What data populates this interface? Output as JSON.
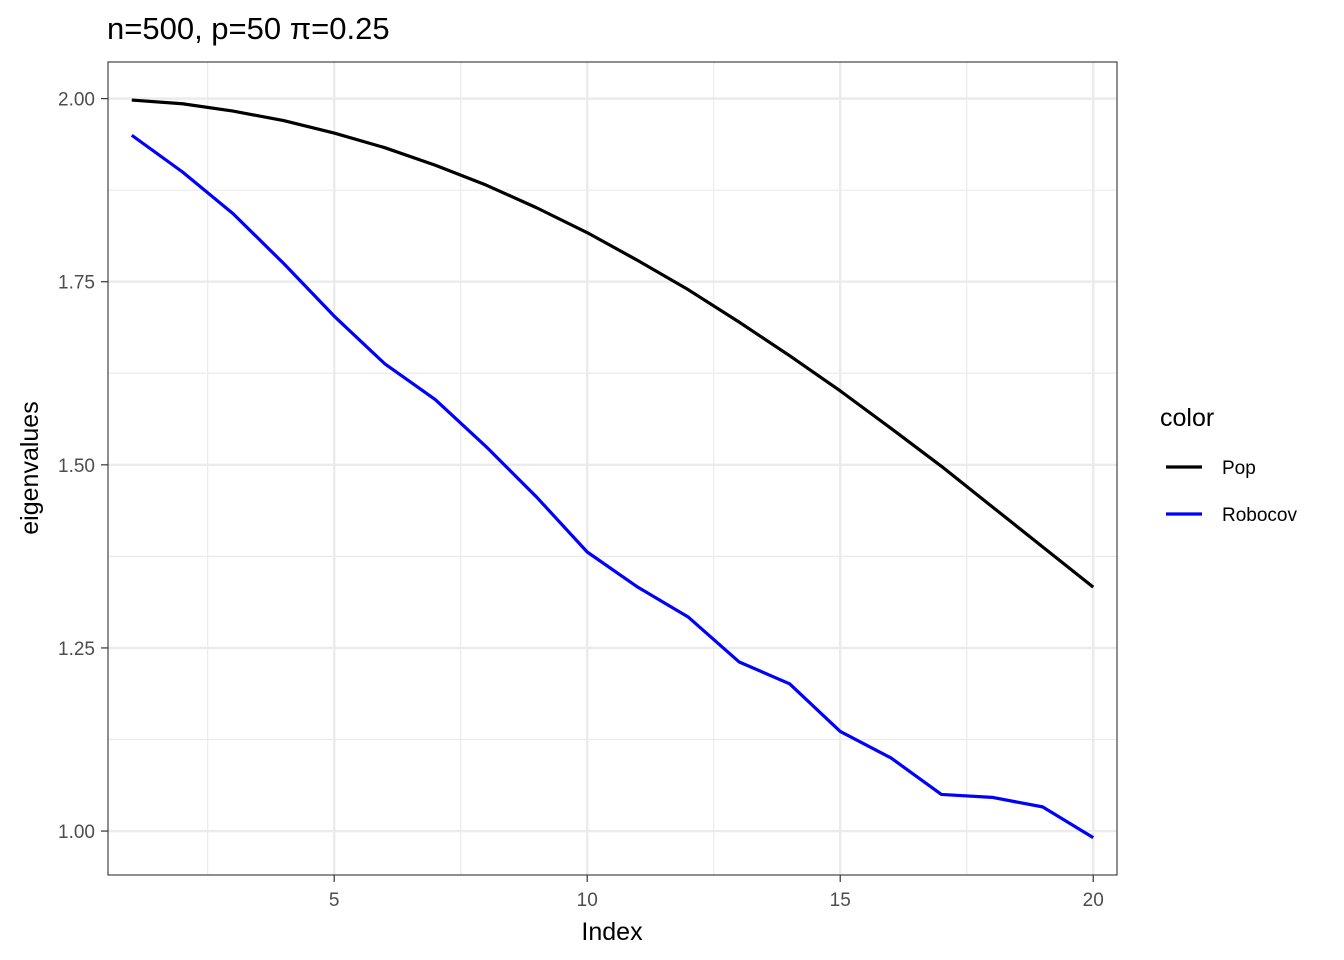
{
  "chart_data": {
    "type": "line",
    "title": "n=500, p=50 π=0.25",
    "xlabel": "Index",
    "ylabel": "eigenvalues",
    "x": [
      1,
      2,
      3,
      4,
      5,
      6,
      7,
      8,
      9,
      10,
      11,
      12,
      13,
      14,
      15,
      16,
      17,
      18,
      19,
      20
    ],
    "xlim": [
      0.53,
      20.47
    ],
    "ylim": [
      0.94,
      2.05
    ],
    "xticks": [
      5,
      10,
      15,
      20
    ],
    "xtick_labels": [
      "5",
      "10",
      "15",
      "20"
    ],
    "yticks": [
      1.0,
      1.25,
      1.5,
      1.75,
      2.0
    ],
    "ytick_labels": [
      "1.00",
      "1.25",
      "1.50",
      "1.75",
      "2.00"
    ],
    "grid": true,
    "legend_title": "color",
    "legend_position": "right",
    "series": [
      {
        "name": "Pop",
        "color": "#000000",
        "values": [
          1.998,
          1.993,
          1.983,
          1.97,
          1.953,
          1.933,
          1.909,
          1.882,
          1.851,
          1.817,
          1.779,
          1.739,
          1.695,
          1.649,
          1.601,
          1.55,
          1.498,
          1.443,
          1.388,
          1.333
        ]
      },
      {
        "name": "Robocov",
        "color": "#0000ff",
        "values": [
          1.95,
          1.9,
          1.843,
          1.775,
          1.703,
          1.638,
          1.589,
          1.525,
          1.456,
          1.381,
          1.333,
          1.292,
          1.231,
          1.201,
          1.136,
          1.1,
          1.05,
          1.046,
          1.033,
          0.991
        ]
      }
    ]
  }
}
